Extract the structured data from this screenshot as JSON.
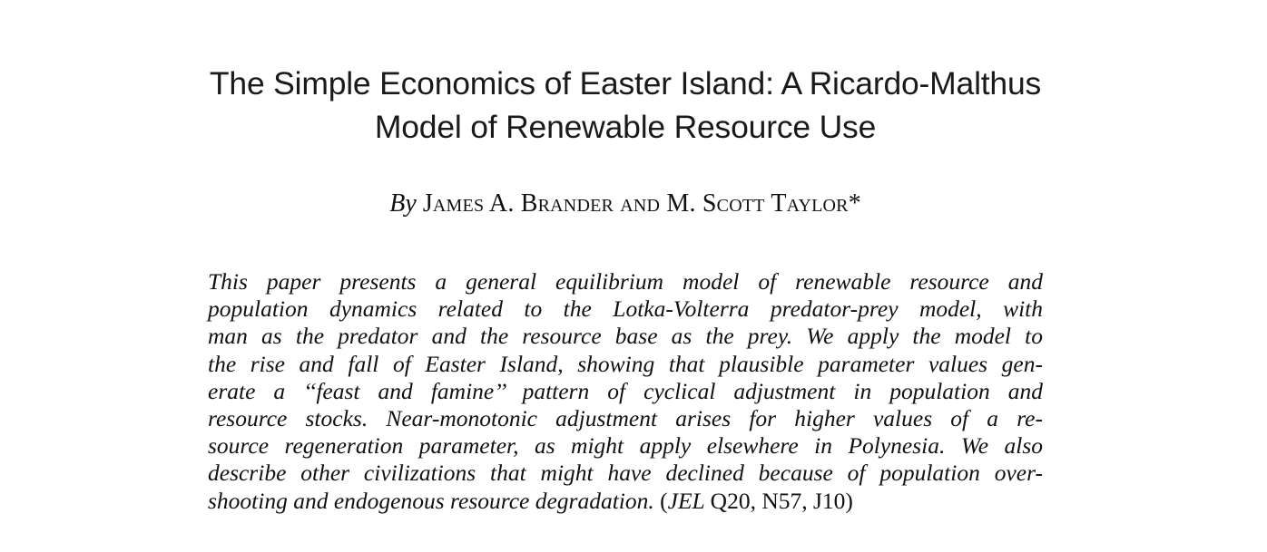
{
  "paper": {
    "title_lines": [
      "The Simple Economics of Easter Island: A Ricardo-Malthus",
      "Model of Renewable Resource Use"
    ],
    "byline": {
      "by": "By",
      "authors": "James A. Brander and M. Scott Taylor",
      "footnote_mark": "*"
    },
    "abstract_lines": [
      "This paper presents a general equilibrium model of renewable resource and",
      "population dynamics related to the Lotka-Volterra predator-prey model, with",
      "man as the predator and the resource base as the prey. We apply the model to",
      "the rise and fall of Easter Island, showing that plausible parameter values gen-",
      "erate a ‘‘feast and famine’’ pattern of cyclical adjustment in population and",
      "resource stocks. Near-monotonic adjustment arises for higher values of a re-",
      "source regeneration parameter, as might apply elsewhere in Polynesia. We also",
      "describe other civilizations that might have declined because of population over-",
      "shooting and endogenous resource degradation."
    ],
    "jel": {
      "open": "(",
      "label": "JEL",
      "codes": "Q20, N57, J10)"
    }
  }
}
